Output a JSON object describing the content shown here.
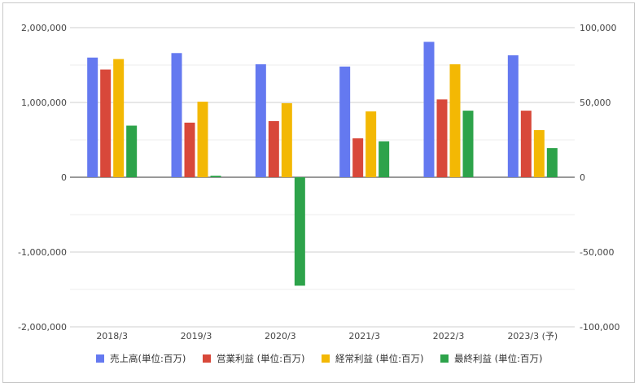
{
  "chart_data": {
    "type": "bar",
    "categories": [
      "2018/3",
      "2019/3",
      "2020/3",
      "2021/3",
      "2022/3",
      "2023/3 (予)"
    ],
    "series": [
      {
        "name": "売上高(単位:百万)",
        "color": "#6479f0",
        "axis": "left",
        "values": [
          1600000,
          1660000,
          1510000,
          1480000,
          1810000,
          1630000
        ]
      },
      {
        "name": "営業利益 (単位:百万)",
        "color": "#d8483a",
        "axis": "right",
        "values": [
          72000,
          36500,
          37500,
          26000,
          52000,
          44500
        ]
      },
      {
        "name": "経常利益 (単位:百万)",
        "color": "#f3b804",
        "axis": "right",
        "values": [
          79000,
          50500,
          49500,
          44000,
          75500,
          31500
        ]
      },
      {
        "name": "最終利益 (単位:百万)",
        "color": "#2da34a",
        "axis": "right",
        "values": [
          34500,
          1000,
          -72500,
          24000,
          44500,
          19500
        ]
      }
    ],
    "ylim_left": [
      -2000000,
      2000000
    ],
    "ylim_right": [
      -100000,
      100000
    ],
    "yticks_left": [
      "2,000,000",
      "1,000,000",
      "0",
      "-1,000,000",
      "-2,000,000"
    ],
    "yticks_right": [
      "100,000",
      "50,000",
      "0",
      "-50,000",
      "-100,000"
    ],
    "grid": true,
    "legend_position": "bottom",
    "title": "",
    "xlabel": "",
    "ylabel": ""
  }
}
